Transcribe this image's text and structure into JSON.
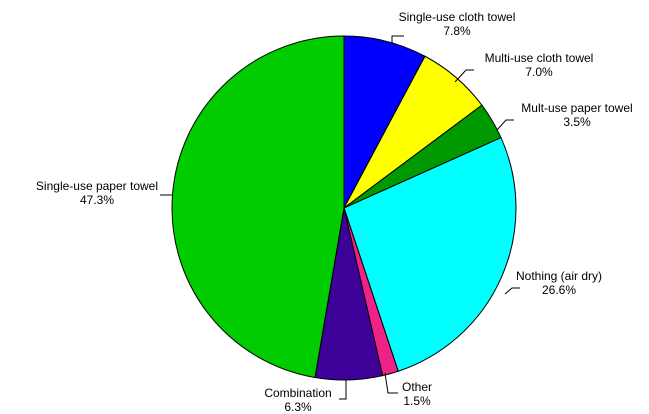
{
  "chart_data": {
    "type": "pie",
    "start": "12 o'clock",
    "direction": "clockwise",
    "slices": [
      {
        "label": "Single-use cloth towel",
        "value_label": "7.8%",
        "value": 7.8,
        "color": "#0000ff"
      },
      {
        "label": "Multi-use cloth towel",
        "value_label": "7.0%",
        "value": 7.0,
        "color": "#ffff00"
      },
      {
        "label": "Mult-use paper towel",
        "value_label": "3.5%",
        "value": 3.5,
        "color": "#009900"
      },
      {
        "label": "Nothing (air dry)",
        "value_label": "26.6%",
        "value": 26.6,
        "color": "#00ffff"
      },
      {
        "label": "Other",
        "value_label": "1.5%",
        "value": 1.5,
        "color": "#ee2288"
      },
      {
        "label": "Combination",
        "value_label": "6.3%",
        "value": 6.3,
        "color": "#3d0099"
      },
      {
        "label": "Single-use paper towel",
        "value_label": "47.3%",
        "value": 47.3,
        "color": "#00cc00"
      }
    ]
  }
}
